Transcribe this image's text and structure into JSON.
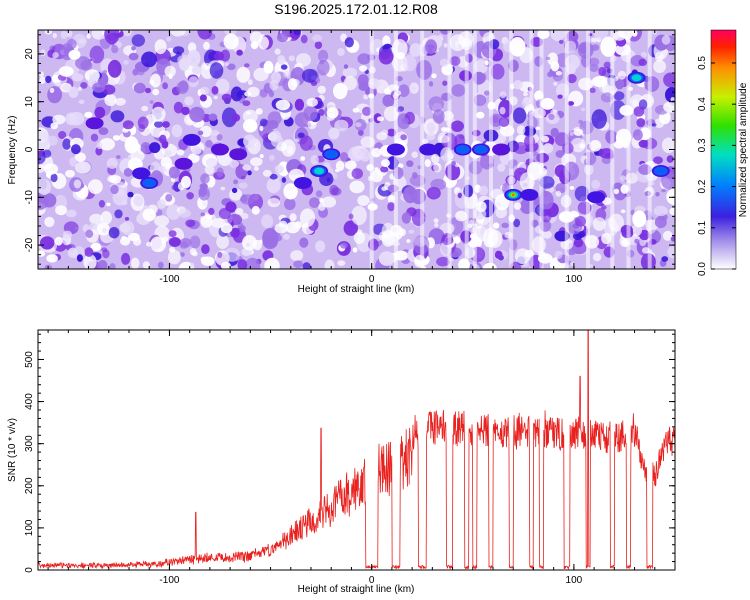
{
  "title": "S196.2025.172.01.12.R08",
  "colors": {
    "spectrogram_low": "#ffffff",
    "spectrogram_mid": "#6a1bd6",
    "snr_line": "#e8201e",
    "frame": "#000000"
  },
  "chart_data": [
    {
      "type": "heatmap",
      "xlabel": "Height of straight line (km)",
      "ylabel": "Frequency (Hz)",
      "xlim": [
        -165,
        150
      ],
      "ylim": [
        -25,
        25
      ],
      "xticks": [
        -100,
        0,
        100
      ],
      "yticks": [
        -20,
        -10,
        0,
        10,
        20
      ],
      "colorbar": {
        "label": "Normalized spectral amplitude",
        "range": [
          0,
          0.58
        ],
        "ticks": [
          0.0,
          0.1,
          0.2,
          0.3,
          0.4,
          0.5
        ]
      },
      "hotspots": [
        {
          "x": 70,
          "y": -9.5,
          "value": 0.5
        },
        {
          "x": -26,
          "y": -4.5,
          "value": 0.25
        },
        {
          "x": -110,
          "y": -7,
          "value": 0.18
        },
        {
          "x": 45,
          "y": 0,
          "value": 0.22
        },
        {
          "x": 54,
          "y": 0,
          "value": 0.2
        },
        {
          "x": -20,
          "y": -1,
          "value": 0.2
        },
        {
          "x": 131,
          "y": 15,
          "value": 0.25
        },
        {
          "x": 143,
          "y": -4.5,
          "value": 0.18
        },
        {
          "x": -114,
          "y": -5,
          "value": 0.15
        },
        {
          "x": -89,
          "y": 2,
          "value": 0.15
        },
        {
          "x": -34,
          "y": -7,
          "value": 0.15
        },
        {
          "x": 28,
          "y": 0,
          "value": 0.15
        },
        {
          "x": 12,
          "y": 0,
          "value": 0.12
        },
        {
          "x": 78,
          "y": -9.5,
          "value": 0.14
        },
        {
          "x": 111,
          "y": -10,
          "value": 0.12
        },
        {
          "x": -93,
          "y": -3,
          "value": 0.1
        },
        {
          "x": -137,
          "y": 5.5,
          "value": 0.1
        },
        {
          "x": -75,
          "y": 0,
          "value": 0.1
        },
        {
          "x": -66,
          "y": -1,
          "value": 0.1
        },
        {
          "x": 64,
          "y": 0,
          "value": 0.1
        }
      ]
    },
    {
      "type": "line",
      "xlabel": "Height of straight line (km)",
      "ylabel": "SNR (10 * v/v)",
      "xlim": [
        -165,
        150
      ],
      "ylim": [
        0,
        570
      ],
      "xticks": [
        -100,
        0,
        100
      ],
      "yticks": [
        0,
        100,
        200,
        300,
        400,
        500
      ],
      "envelope": [
        [
          -165,
          15
        ],
        [
          -130,
          15
        ],
        [
          -110,
          20
        ],
        [
          -100,
          25
        ],
        [
          -90,
          35
        ],
        [
          -80,
          40
        ],
        [
          -70,
          40
        ],
        [
          -60,
          45
        ],
        [
          -50,
          60
        ],
        [
          -45,
          80
        ],
        [
          -40,
          110
        ],
        [
          -35,
          130
        ],
        [
          -30,
          150
        ],
        [
          -25,
          170
        ],
        [
          -20,
          190
        ],
        [
          -15,
          220
        ],
        [
          -10,
          240
        ],
        [
          -5,
          270
        ],
        [
          0,
          290
        ],
        [
          5,
          300
        ],
        [
          10,
          310
        ],
        [
          15,
          330
        ],
        [
          20,
          350
        ],
        [
          25,
          380
        ],
        [
          30,
          380
        ],
        [
          40,
          380
        ],
        [
          50,
          375
        ],
        [
          60,
          370
        ],
        [
          70,
          370
        ],
        [
          80,
          370
        ],
        [
          90,
          365
        ],
        [
          100,
          365
        ],
        [
          110,
          360
        ],
        [
          120,
          355
        ],
        [
          130,
          350
        ],
        [
          135,
          270
        ],
        [
          140,
          250
        ],
        [
          145,
          330
        ],
        [
          150,
          340
        ]
      ],
      "dropouts": [
        [
          -3,
          3
        ],
        [
          10,
          14
        ],
        [
          23,
          27
        ],
        [
          37,
          40
        ],
        [
          46,
          48
        ],
        [
          50,
          52
        ],
        [
          58,
          60
        ],
        [
          68,
          70
        ],
        [
          78,
          80
        ],
        [
          83,
          85
        ],
        [
          95,
          98
        ],
        [
          106,
          108
        ],
        [
          118,
          120
        ],
        [
          126,
          128
        ],
        [
          136,
          139
        ]
      ],
      "spikes": [
        {
          "x": -87,
          "y": 137
        },
        {
          "x": -25,
          "y": 337
        },
        {
          "x": 103,
          "y": 460
        },
        {
          "x": 107,
          "y": 570
        }
      ]
    }
  ]
}
